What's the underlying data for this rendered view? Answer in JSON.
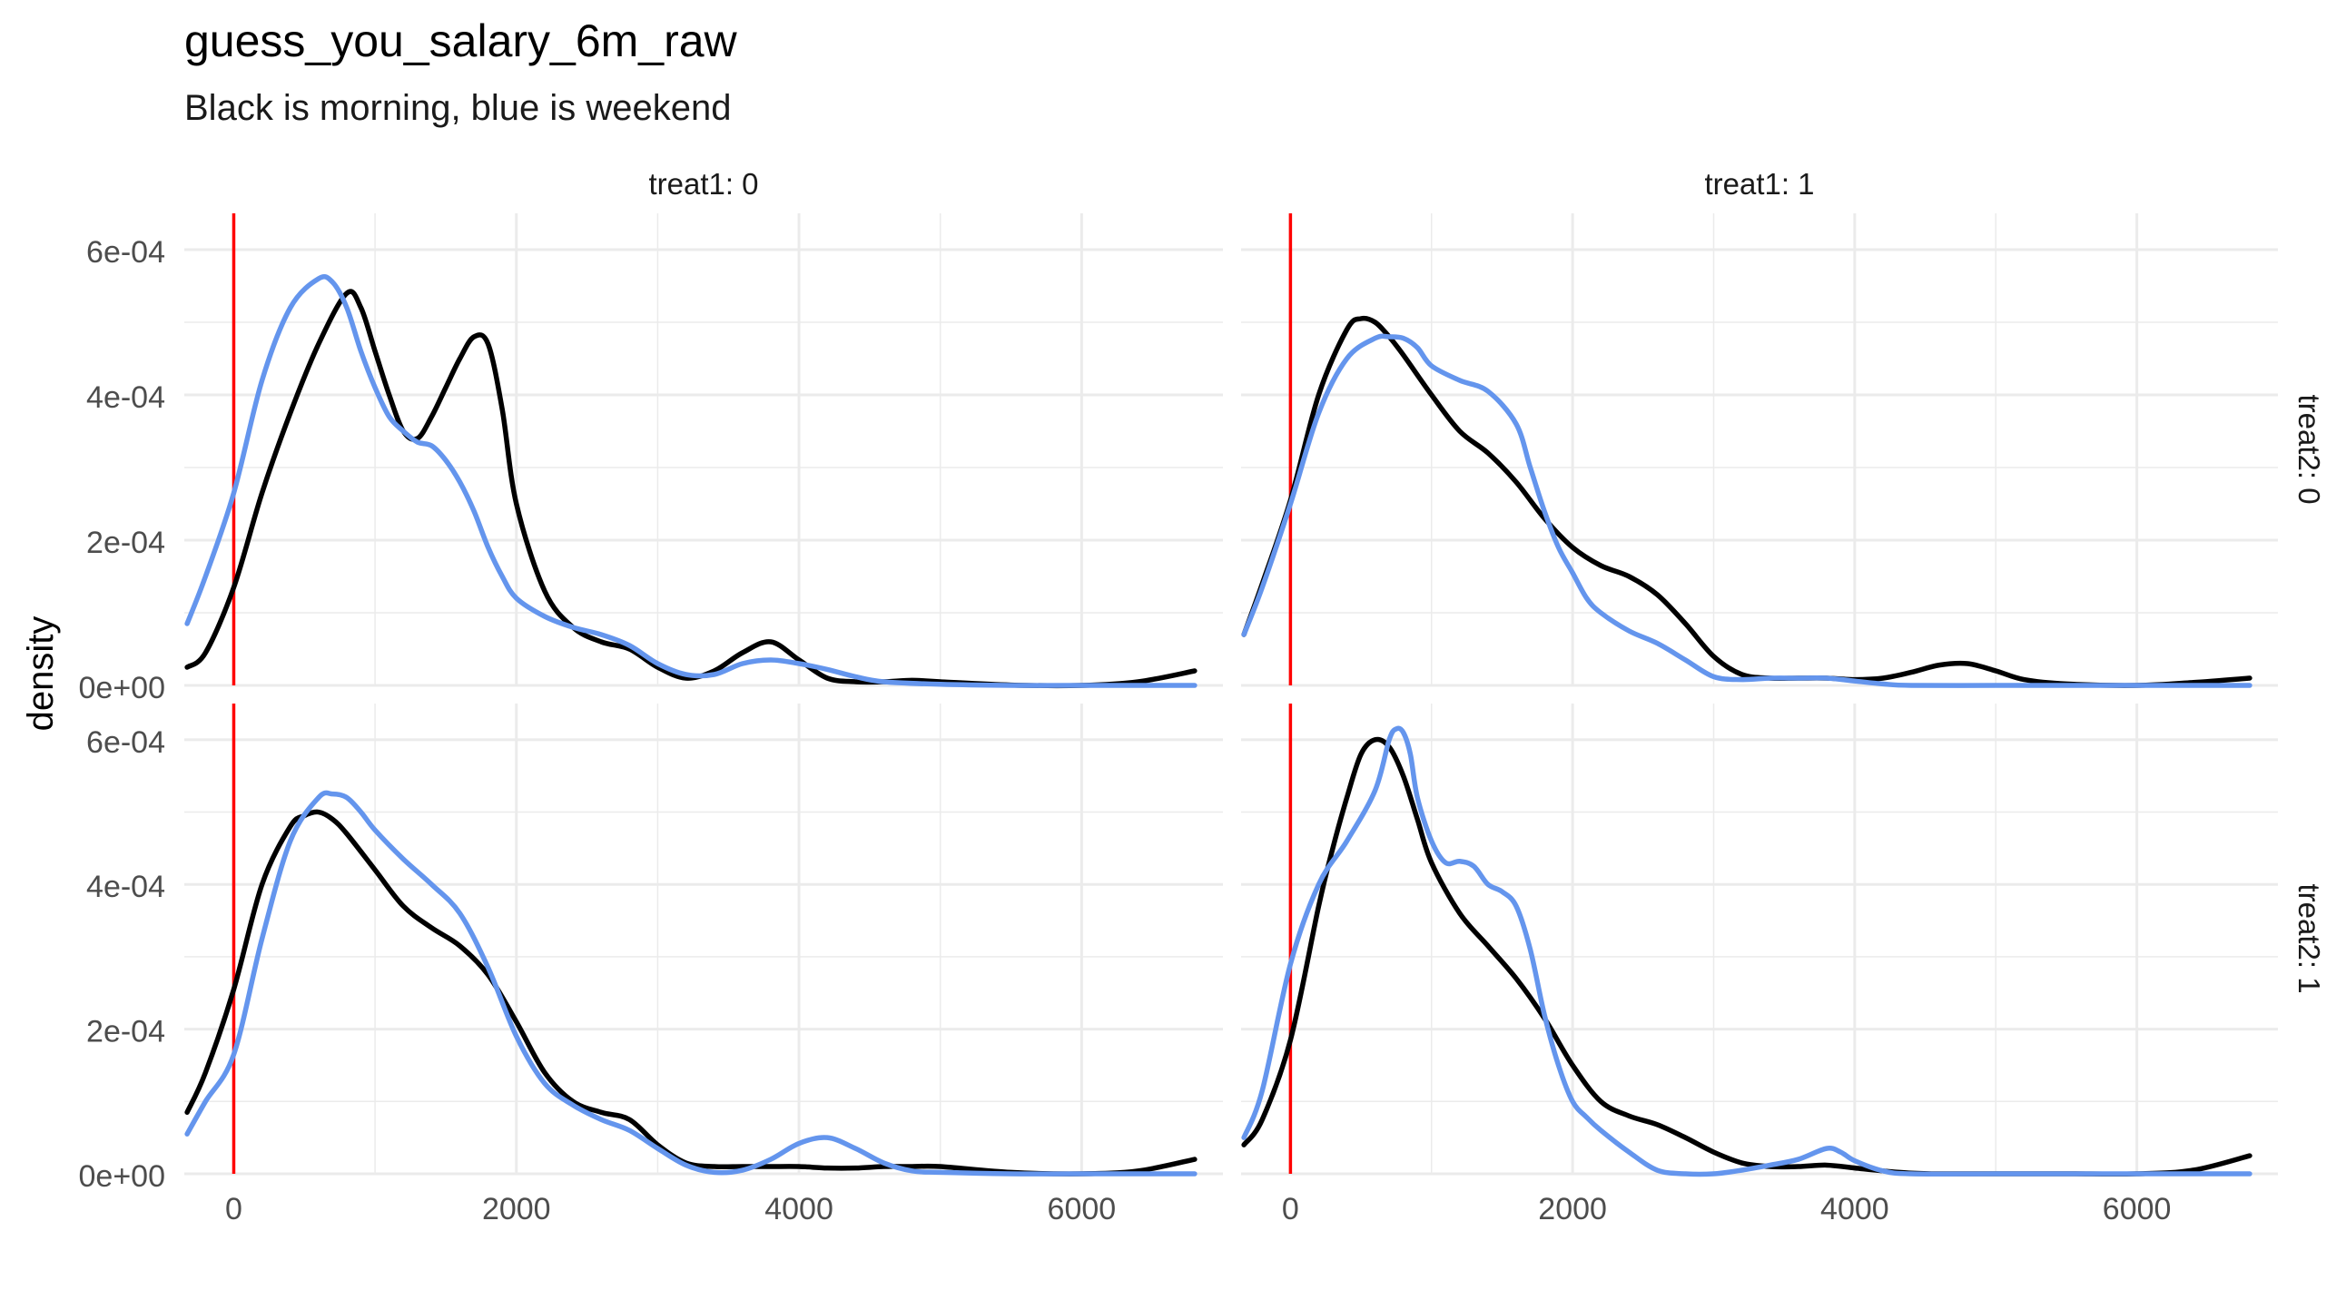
{
  "chart_data": {
    "type": "line",
    "title": "guess_you_salary_6m_raw",
    "subtitle": "Black is morning, blue is weekend",
    "xlabel": "",
    "ylabel": "density",
    "xlim": [
      -350,
      7000
    ],
    "ylim": [
      0,
      0.00065
    ],
    "x_ticks": [
      0,
      2000,
      4000,
      6000
    ],
    "x_tick_labels": [
      "0",
      "2000",
      "4000",
      "6000"
    ],
    "y_ticks": [
      0,
      0.0002,
      0.0004,
      0.0006
    ],
    "y_tick_labels": [
      "0e+00",
      "2e-04",
      "4e-04",
      "6e-04"
    ],
    "grid": true,
    "legend": "none",
    "colors": {
      "morning": "#000000",
      "weekend": "#6495ED",
      "vline": "#FF0000",
      "grid": "#EBEBEB",
      "text": "#4D4D4D",
      "strip_text": "#1A1A1A"
    },
    "vline_x": 0,
    "col_strip_labels": [
      "treat1: 0",
      "treat1: 1"
    ],
    "row_strip_labels": [
      "treat2: 0",
      "treat2: 1"
    ],
    "panels": [
      {
        "col": 0,
        "row": 0,
        "series": [
          {
            "color": "#000000",
            "x": [
              -330,
              -200,
              0,
              200,
              400,
              600,
              800,
              900,
              1000,
              1100,
              1200,
              1300,
              1400,
              1500,
              1600,
              1700,
              1800,
              1900,
              2000,
              2200,
              2400,
              2600,
              2800,
              3000,
              3200,
              3400,
              3600,
              3800,
              4000,
              4200,
              4400,
              4600,
              4800,
              5000,
              5500,
              6000,
              6400,
              6800
            ],
            "y": [
              2.5e-05,
              4.5e-05,
              0.000135,
              0.000265,
              0.000375,
              0.00047,
              0.00054,
              0.00052,
              0.00046,
              0.0004,
              0.00035,
              0.00034,
              0.00037,
              0.00041,
              0.00045,
              0.00048,
              0.00047,
              0.00038,
              0.00025,
              0.00013,
              8e-05,
              6e-05,
              5e-05,
              2.5e-05,
              1e-05,
              2e-05,
              4.5e-05,
              6e-05,
              3.5e-05,
              1e-05,
              5e-06,
              5e-06,
              7e-06,
              5e-06,
              5e-07,
              0.0,
              5e-06,
              2e-05
            ]
          },
          {
            "color": "#6495ED",
            "x": [
              -330,
              -200,
              0,
              200,
              400,
              600,
              700,
              800,
              900,
              1000,
              1100,
              1200,
              1300,
              1400,
              1500,
              1600,
              1700,
              1800,
              1900,
              2000,
              2200,
              2400,
              2600,
              2800,
              3000,
              3200,
              3400,
              3600,
              3800,
              4000,
              4200,
              4400,
              4600,
              5000,
              5500,
              6000,
              6400,
              6800
            ],
            "y": [
              8.5e-05,
              0.00015,
              0.000265,
              0.00042,
              0.00052,
              0.00056,
              0.000555,
              0.00052,
              0.00046,
              0.00041,
              0.00037,
              0.00035,
              0.000335,
              0.00033,
              0.00031,
              0.00028,
              0.00024,
              0.00019,
              0.00015,
              0.00012,
              9.5e-05,
              8e-05,
              7e-05,
              5.5e-05,
              3e-05,
              1.5e-05,
              1.5e-05,
              3e-05,
              3.5e-05,
              3e-05,
              2.2e-05,
              1.2e-05,
              5e-06,
              1.5e-06,
              0.0,
              0.0,
              0.0,
              0.0
            ]
          }
        ]
      },
      {
        "col": 1,
        "row": 0,
        "series": [
          {
            "color": "#000000",
            "x": [
              -330,
              -200,
              0,
              200,
              400,
              500,
              600,
              700,
              800,
              1000,
              1200,
              1400,
              1600,
              1800,
              2000,
              2200,
              2400,
              2600,
              2800,
              3000,
              3200,
              3400,
              3600,
              3800,
              4000,
              4200,
              4400,
              4600,
              4800,
              5000,
              5200,
              5500,
              6000,
              6400,
              6800
            ],
            "y": [
              7e-05,
              0.00014,
              0.000255,
              0.0004,
              0.00049,
              0.000505,
              0.0005,
              0.00048,
              0.000455,
              0.0004,
              0.00035,
              0.00032,
              0.00028,
              0.00023,
              0.00019,
              0.000165,
              0.00015,
              0.000125,
              8.5e-05,
              4e-05,
              1.5e-05,
              1e-05,
              1e-05,
              1e-05,
              8e-06,
              1e-05,
              1.8e-05,
              2.8e-05,
              3e-05,
              2e-05,
              8e-06,
              2e-06,
              0.0,
              4e-06,
              1e-05
            ]
          },
          {
            "color": "#6495ED",
            "x": [
              -330,
              -200,
              0,
              200,
              400,
              600,
              700,
              800,
              900,
              1000,
              1200,
              1400,
              1600,
              1700,
              1800,
              1900,
              2000,
              2100,
              2200,
              2400,
              2600,
              2800,
              3000,
              3200,
              3400,
              3600,
              3800,
              4000,
              4200,
              4400,
              5000,
              5500,
              6000,
              6800
            ],
            "y": [
              7e-05,
              0.000135,
              0.00025,
              0.000375,
              0.00045,
              0.000478,
              0.00048,
              0.000478,
              0.000465,
              0.00044,
              0.00042,
              0.000405,
              0.00036,
              0.0003,
              0.00024,
              0.00019,
              0.000155,
              0.00012,
              0.0001,
              7.5e-05,
              5.8e-05,
              3.5e-05,
              1.2e-05,
              8e-06,
              1e-05,
              1e-05,
              1e-05,
              6e-06,
              2e-06,
              0.0,
              0.0,
              0.0,
              0.0,
              0.0
            ]
          }
        ]
      },
      {
        "col": 0,
        "row": 1,
        "series": [
          {
            "color": "#000000",
            "x": [
              -330,
              -200,
              0,
              200,
              400,
              500,
              600,
              700,
              800,
              1000,
              1200,
              1400,
              1600,
              1800,
              2000,
              2200,
              2400,
              2600,
              2800,
              3000,
              3200,
              3400,
              3600,
              3800,
              4000,
              4200,
              4400,
              4600,
              4800,
              5000,
              5500,
              6000,
              6400,
              6800
            ],
            "y": [
              8.5e-05,
              0.00014,
              0.000255,
              0.0004,
              0.00048,
              0.000495,
              0.0005,
              0.00049,
              0.00047,
              0.00042,
              0.00037,
              0.00034,
              0.000315,
              0.000275,
              0.00021,
              0.00014,
              0.0001,
              8.5e-05,
              7.5e-05,
              4e-05,
              1.5e-05,
              1e-05,
              1e-05,
              1e-05,
              1e-05,
              8e-06,
              8e-06,
              1e-05,
              1e-05,
              1e-05,
              2e-06,
              0.0,
              4e-06,
              2e-05
            ]
          },
          {
            "color": "#6495ED",
            "x": [
              -330,
              -200,
              0,
              200,
              400,
              600,
              700,
              800,
              900,
              1000,
              1200,
              1400,
              1600,
              1800,
              2000,
              2200,
              2400,
              2600,
              2800,
              3000,
              3200,
              3400,
              3600,
              3800,
              4000,
              4200,
              4400,
              4600,
              4800,
              5000,
              5500,
              6000,
              6800
            ],
            "y": [
              5.5e-05,
              0.0001,
              0.000165,
              0.000325,
              0.00046,
              0.00052,
              0.000525,
              0.00052,
              0.0005,
              0.000475,
              0.000435,
              0.0004,
              0.00036,
              0.000285,
              0.00019,
              0.000125,
              9.5e-05,
              7.5e-05,
              6e-05,
              3.5e-05,
              1.2e-05,
              2e-06,
              5e-06,
              2e-05,
              4.2e-05,
              5e-05,
              3.5e-05,
              1.5e-05,
              4e-06,
              2e-06,
              0.0,
              0.0,
              0.0
            ]
          }
        ]
      },
      {
        "col": 1,
        "row": 1,
        "series": [
          {
            "color": "#000000",
            "x": [
              -330,
              -200,
              0,
              200,
              300,
              400,
              500,
              600,
              700,
              800,
              900,
              1000,
              1200,
              1400,
              1600,
              1800,
              2000,
              2200,
              2400,
              2600,
              2800,
              3000,
              3200,
              3400,
              3600,
              3800,
              4000,
              4200,
              4400,
              4600,
              5000,
              5500,
              6000,
              6400,
              6800
            ],
            "y": [
              4e-05,
              7.5e-05,
              0.000185,
              0.00037,
              0.00045,
              0.00052,
              0.00058,
              0.0006,
              0.00059,
              0.00055,
              0.00049,
              0.00043,
              0.00036,
              0.000315,
              0.00027,
              0.000215,
              0.00015,
              0.0001,
              8e-05,
              6.8e-05,
              5e-05,
              3e-05,
              1.5e-05,
              1e-05,
              1e-05,
              1.2e-05,
              8e-06,
              4e-06,
              1e-06,
              0.0,
              0.0,
              0.0,
              0.0,
              5e-06,
              2.5e-05
            ]
          },
          {
            "color": "#6495ED",
            "x": [
              -330,
              -200,
              0,
              200,
              400,
              600,
              700,
              750,
              800,
              850,
              900,
              1000,
              1100,
              1200,
              1300,
              1400,
              1500,
              1600,
              1700,
              1800,
              1900,
              2000,
              2100,
              2200,
              2400,
              2600,
              2800,
              3000,
              3200,
              3400,
              3600,
              3800,
              3900,
              4000,
              4200,
              4400,
              5000,
              5500,
              6000,
              6800
            ],
            "y": [
              5e-05,
              0.000115,
              0.00029,
              0.0004,
              0.00046,
              0.00053,
              0.0006,
              0.000615,
              0.00061,
              0.00058,
              0.00052,
              0.00046,
              0.00043,
              0.000432,
              0.000425,
              0.0004,
              0.00039,
              0.00037,
              0.00031,
              0.00022,
              0.00015,
              0.0001,
              7.8e-05,
              6e-05,
              3e-05,
              5e-06,
              0.0,
              0.0,
              5e-06,
              1.2e-05,
              2e-05,
              3.5e-05,
              3e-05,
              1.8e-05,
              4e-06,
              0.0,
              0.0,
              0.0,
              0.0,
              0.0
            ]
          }
        ]
      }
    ]
  }
}
